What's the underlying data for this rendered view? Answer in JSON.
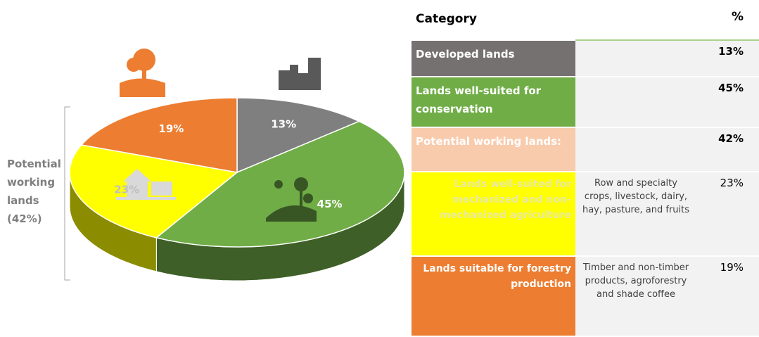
{
  "chart_data": {
    "type": "pie",
    "categories": [
      "Developed lands",
      "Lands well-suited for conservation",
      "Lands well-suited for mechanized and non-mechanized agriculture",
      "Lands suitable for forestry production"
    ],
    "values": [
      13,
      45,
      23,
      19
    ],
    "value_labels": [
      "13%",
      "45%",
      "23%",
      "19%"
    ],
    "colors": [
      "#7f7f7f",
      "#70ad47",
      "#ffff00",
      "#ed7d31"
    ],
    "annotation": [
      "Potential",
      "working",
      "lands",
      "(42%)"
    ]
  },
  "table": {
    "header": [
      "Category",
      "%"
    ],
    "rows": [
      {
        "category": "Developed lands",
        "percent": "13%"
      },
      {
        "category": "Lands well-suited for conservation",
        "percent": "45%"
      },
      {
        "category": "Potential working lands:",
        "percent": "42%"
      },
      {
        "category": "Lands well-suited for mechanized and non-mechanized agriculture",
        "description": "Row and specialty crops, livestock, dairy, hay, pasture, and fruits",
        "percent": "23%"
      },
      {
        "category": "Lands suitable for forestry production",
        "description": "Timber and non-timber products, agroforestry and shade coffee",
        "percent": "19%"
      }
    ]
  }
}
